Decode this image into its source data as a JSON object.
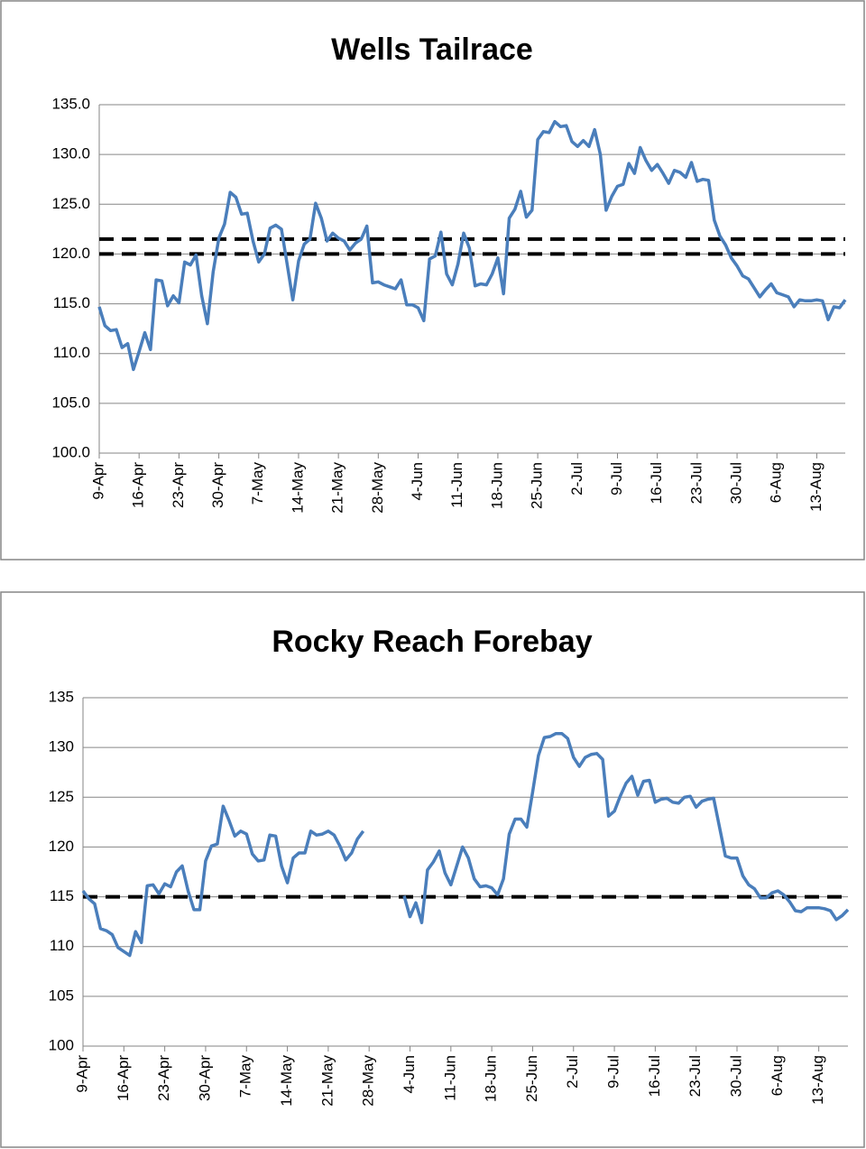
{
  "chart_data": [
    {
      "type": "line",
      "title": "Wells Tailrace",
      "categories": [
        "9-Apr",
        null,
        null,
        null,
        null,
        null,
        null,
        "16-Apr",
        null,
        null,
        null,
        null,
        null,
        null,
        "23-Apr",
        null,
        null,
        null,
        null,
        null,
        null,
        "30-Apr",
        null,
        null,
        null,
        null,
        null,
        null,
        "7-May",
        null,
        null,
        null,
        null,
        null,
        null,
        "14-May",
        null,
        null,
        null,
        null,
        null,
        null,
        "21-May",
        null,
        null,
        null,
        null,
        null,
        null,
        "28-May",
        null,
        null,
        null,
        null,
        null,
        null,
        "4-Jun",
        null,
        null,
        null,
        null,
        null,
        null,
        "11-Jun",
        null,
        null,
        null,
        null,
        null,
        null,
        "18-Jun",
        null,
        null,
        null,
        null,
        null,
        null,
        "25-Jun",
        null,
        null,
        null,
        null,
        null,
        null,
        "2-Jul",
        null,
        null,
        null,
        null,
        null,
        null,
        "9-Jul",
        null,
        null,
        null,
        null,
        null,
        null,
        "16-Jul",
        null,
        null,
        null,
        null,
        null,
        null,
        "23-Jul",
        null,
        null,
        null,
        null,
        null,
        null,
        "30-Jul",
        null,
        null,
        null,
        null,
        null,
        null,
        "6-Aug",
        null,
        null,
        null,
        null,
        null,
        null,
        "13-Aug",
        null,
        null,
        null,
        null,
        null
      ],
      "series": [
        {
          "color": "#4a7ebb",
          "values": [
            114.7,
            112.8,
            112.3,
            112.4,
            110.6,
            111.0,
            108.4,
            110.2,
            112.1,
            110.4,
            117.4,
            117.3,
            114.8,
            115.8,
            115.1,
            119.2,
            118.9,
            119.9,
            115.8,
            113.0,
            118.2,
            121.6,
            123.0,
            126.2,
            125.7,
            124.0,
            124.1,
            121.3,
            119.2,
            120.0,
            122.6,
            122.9,
            122.5,
            119.0,
            115.4,
            119.3,
            121.0,
            121.5,
            125.1,
            123.6,
            121.3,
            122.1,
            121.6,
            121.3,
            120.4,
            121.1,
            121.5,
            122.8,
            117.1,
            117.2,
            116.9,
            116.7,
            116.5,
            117.4,
            114.9,
            114.9,
            114.6,
            113.3,
            119.5,
            119.8,
            122.2,
            118.0,
            116.9,
            119.0,
            122.1,
            120.6,
            116.8,
            117.0,
            116.9,
            118.0,
            119.6,
            116.0,
            123.6,
            124.5,
            126.3,
            123.7,
            124.4,
            131.5,
            132.3,
            132.2,
            133.3,
            132.8,
            132.9,
            131.3,
            130.8,
            131.4,
            130.8,
            132.5,
            130.0,
            124.4,
            125.8,
            126.8,
            127.0,
            129.1,
            128.1,
            130.7,
            129.4,
            128.4,
            129.0,
            128.1,
            127.1,
            128.4,
            128.2,
            127.7,
            129.2,
            127.3,
            127.5,
            127.4,
            123.4,
            121.8,
            120.9,
            119.6,
            118.8,
            117.8,
            117.5,
            116.6,
            115.7,
            116.4,
            117.0,
            116.1,
            115.9,
            115.7,
            114.7,
            115.4,
            115.3,
            115.3,
            115.4,
            115.3,
            113.4,
            114.7,
            114.6,
            115.4
          ]
        }
      ],
      "reference_lines": [
        121.5,
        120
      ],
      "reference_color": "#000000",
      "ylim": [
        100,
        135
      ],
      "yticks": [
        {
          "value": 100,
          "label": "100.0"
        },
        {
          "value": 105,
          "label": "105.0"
        },
        {
          "value": 110,
          "label": "110.0"
        },
        {
          "value": 115,
          "label": "115.0"
        },
        {
          "value": 120,
          "label": "120.0"
        },
        {
          "value": 125,
          "label": "125.0"
        },
        {
          "value": 130,
          "label": "130.0"
        },
        {
          "value": 135,
          "label": "135.0"
        }
      ],
      "grid": true
    },
    {
      "type": "line",
      "title": "Rocky Reach Forebay",
      "categories": [
        "9-Apr",
        null,
        null,
        null,
        null,
        null,
        null,
        "16-Apr",
        null,
        null,
        null,
        null,
        null,
        null,
        "23-Apr",
        null,
        null,
        null,
        null,
        null,
        null,
        "30-Apr",
        null,
        null,
        null,
        null,
        null,
        null,
        "7-May",
        null,
        null,
        null,
        null,
        null,
        null,
        "14-May",
        null,
        null,
        null,
        null,
        null,
        null,
        "21-May",
        null,
        null,
        null,
        null,
        null,
        null,
        "28-May",
        null,
        null,
        null,
        null,
        null,
        null,
        "4-Jun",
        null,
        null,
        null,
        null,
        null,
        null,
        "11-Jun",
        null,
        null,
        null,
        null,
        null,
        null,
        "18-Jun",
        null,
        null,
        null,
        null,
        null,
        null,
        "25-Jun",
        null,
        null,
        null,
        null,
        null,
        null,
        "2-Jul",
        null,
        null,
        null,
        null,
        null,
        null,
        "9-Jul",
        null,
        null,
        null,
        null,
        null,
        null,
        "16-Jul",
        null,
        null,
        null,
        null,
        null,
        null,
        "23-Jul",
        null,
        null,
        null,
        null,
        null,
        null,
        "30-Jul",
        null,
        null,
        null,
        null,
        null,
        null,
        "6-Aug",
        null,
        null,
        null,
        null,
        null,
        null,
        "13-Aug",
        null,
        null,
        null,
        null,
        null
      ],
      "series": [
        {
          "color": "#4a7ebb",
          "values": [
            115.6,
            114.8,
            114.3,
            111.8,
            111.6,
            111.2,
            109.9,
            109.5,
            109.1,
            111.5,
            110.4,
            116.1,
            116.2,
            115.3,
            116.3,
            116.0,
            117.5,
            118.1,
            115.6,
            113.7,
            113.7,
            118.6,
            120.1,
            120.3,
            124.1,
            122.7,
            121.1,
            121.6,
            121.3,
            119.3,
            118.6,
            118.7,
            121.2,
            121.1,
            118.1,
            116.4,
            118.9,
            119.4,
            119.4,
            121.6,
            121.2,
            121.3,
            121.6,
            121.2,
            120.1,
            118.7,
            119.4,
            120.8,
            121.6,
            null,
            null,
            null,
            null,
            null,
            null,
            115.1,
            113.0,
            114.4,
            112.4,
            117.7,
            118.5,
            119.6,
            117.4,
            116.2,
            118.1,
            120.0,
            118.9,
            116.8,
            116.0,
            116.1,
            115.9,
            115.2,
            116.8,
            121.3,
            122.8,
            122.8,
            122.0,
            125.5,
            129.2,
            131.0,
            131.1,
            131.4,
            131.4,
            130.9,
            129.0,
            128.1,
            129.0,
            129.3,
            129.4,
            128.8,
            123.1,
            123.6,
            125.1,
            126.4,
            127.1,
            125.2,
            126.6,
            126.7,
            124.5,
            124.8,
            124.9,
            124.5,
            124.4,
            125.0,
            125.1,
            124.0,
            124.6,
            124.8,
            124.9,
            122.0,
            119.1,
            118.9,
            118.9,
            117.1,
            116.2,
            115.8,
            114.9,
            114.9,
            115.4,
            115.6,
            115.2,
            114.5,
            113.6,
            113.5,
            113.9,
            113.9,
            113.9,
            113.8,
            113.6,
            112.7,
            113.1,
            113.7
          ]
        }
      ],
      "reference_lines": [
        115
      ],
      "reference_color": "#000000",
      "ylim": [
        100,
        135
      ],
      "yticks": [
        100,
        105,
        110,
        115,
        120,
        125,
        130,
        135
      ],
      "grid": true
    }
  ]
}
